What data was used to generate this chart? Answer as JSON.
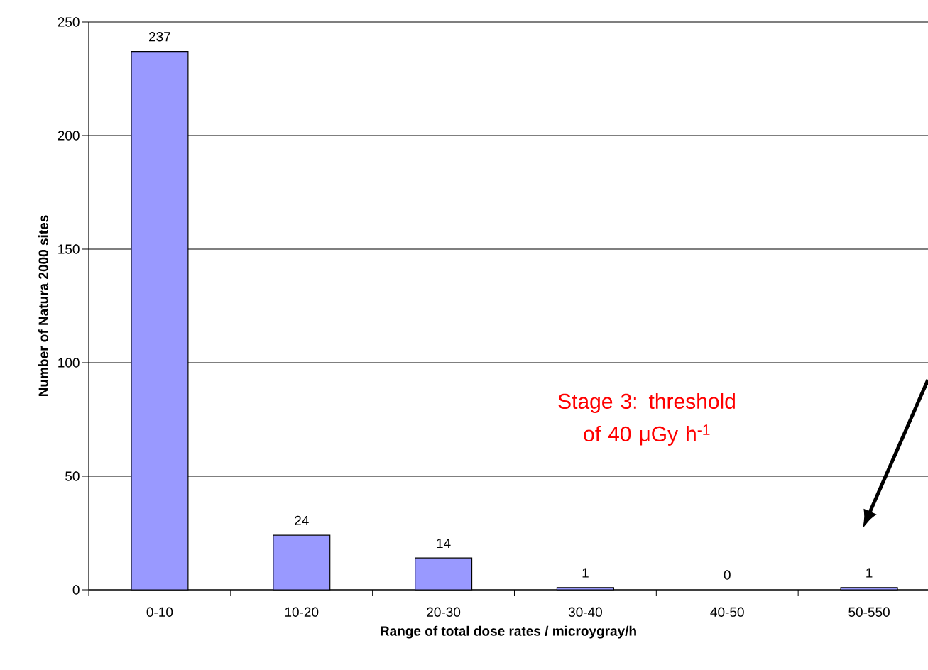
{
  "chart_data": {
    "type": "bar",
    "xlabel": "Range of total dose rates / microygray/h",
    "ylabel": "Number of Natura 2000 sites",
    "categories": [
      "0-10",
      "10-20",
      "20-30",
      "30-40",
      "40-50",
      "50-550"
    ],
    "values": [
      237,
      24,
      14,
      1,
      0,
      1
    ],
    "value_labels": [
      "237",
      "24",
      "14",
      "1",
      "0",
      "1"
    ],
    "color": "#9999ff",
    "ylim": [
      0,
      250
    ],
    "yticks": [
      0,
      50,
      100,
      150,
      200,
      250
    ],
    "grid": "y",
    "annotations": [
      "Stage 3: threshold of 40 μGy h$^{-1}$"
    ]
  }
}
